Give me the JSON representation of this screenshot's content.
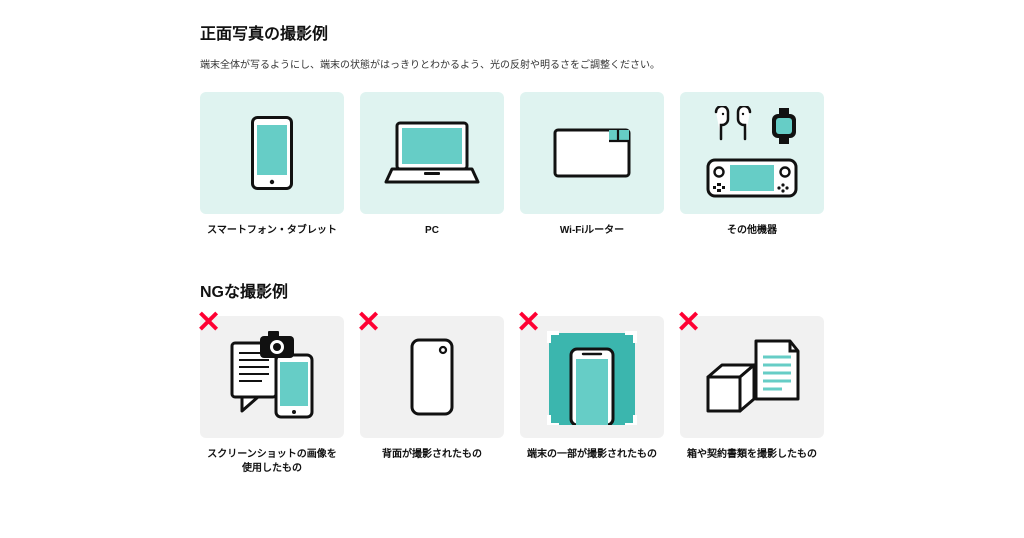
{
  "colors": {
    "good_tile_bg": "#dff3f0",
    "bad_tile_bg": "#f1f1f1",
    "teal": "#66cdc6",
    "teal_dark": "#3bb6ae",
    "stroke": "#111111",
    "text": "#111111",
    "ng_mark": "#ff0033",
    "white": "#ffffff"
  },
  "section_good": {
    "title": "正面写真の撮影例",
    "desc": "端末全体が写るようにし、端末の状態がはっきりとわかるよう、光の反射や明るさをご調整ください。",
    "items": [
      {
        "label": "スマートフォン・タブレット",
        "icon": "smartphone"
      },
      {
        "label": "PC",
        "icon": "laptop"
      },
      {
        "label": "Wi-Fiルーター",
        "icon": "router"
      },
      {
        "label": "その他機器",
        "icon": "other-devices"
      }
    ]
  },
  "section_bad": {
    "title": "NGな撮影例",
    "items": [
      {
        "label": "スクリーンショットの画像を\n使用したもの",
        "icon": "screenshot"
      },
      {
        "label": "背面が撮影されたもの",
        "icon": "backside"
      },
      {
        "label": "端末の一部が撮影されたもの",
        "icon": "partial"
      },
      {
        "label": "箱や契約書類を撮影したもの",
        "icon": "box-doc"
      }
    ]
  }
}
